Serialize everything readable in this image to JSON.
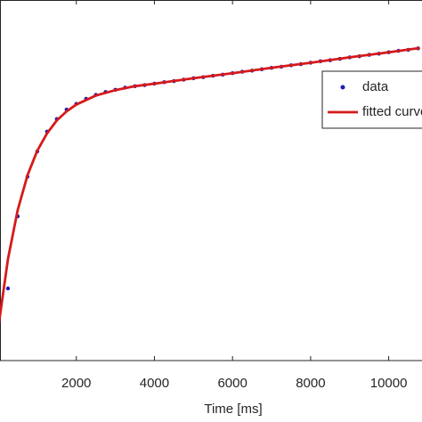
{
  "chart_data": {
    "type": "line",
    "x_label": "Time [ms]",
    "xlim": [
      0,
      10800
    ],
    "ylim": [
      0,
      1
    ],
    "xticks": [
      2000,
      4000,
      6000,
      8000,
      10000
    ],
    "series": [
      {
        "name": "data",
        "color": "#1c1cb4",
        "marker": "dot",
        "x": [
          0,
          250,
          500,
          750,
          1000,
          1250,
          1500,
          1750,
          2000,
          2250,
          2500,
          2750,
          3000,
          3250,
          3500,
          3750,
          4000,
          4250,
          4500,
          4750,
          5000,
          5250,
          5500,
          5750,
          6000,
          6250,
          6500,
          6750,
          7000,
          7250,
          7500,
          7750,
          8000,
          8250,
          8500,
          8750,
          9000,
          9250,
          9500,
          9750,
          10000,
          10250,
          10500,
          10750
        ],
        "values": [
          0.1,
          0.2,
          0.4,
          0.51,
          0.58,
          0.635,
          0.67,
          0.696,
          0.712,
          0.726,
          0.737,
          0.745,
          0.751,
          0.757,
          0.761,
          0.764,
          0.768,
          0.772,
          0.775,
          0.779,
          0.783,
          0.786,
          0.79,
          0.793,
          0.797,
          0.801,
          0.804,
          0.808,
          0.812,
          0.815,
          0.819,
          0.822,
          0.826,
          0.83,
          0.833,
          0.837,
          0.841,
          0.844,
          0.848,
          0.851,
          0.855,
          0.859,
          0.862,
          0.866
        ]
      },
      {
        "name": "fitted curve",
        "color": "#d71a1a",
        "marker": "line",
        "x": [
          0,
          250,
          500,
          750,
          1000,
          1250,
          1500,
          1750,
          2000,
          2500,
          3000,
          3500,
          4000,
          5000,
          6000,
          7000,
          8000,
          9000,
          10000,
          10800
        ],
        "values": [
          0.09,
          0.282,
          0.418,
          0.514,
          0.582,
          0.63,
          0.666,
          0.691,
          0.71,
          0.735,
          0.75,
          0.761,
          0.768,
          0.783,
          0.797,
          0.812,
          0.826,
          0.841,
          0.855,
          0.867
        ]
      }
    ]
  }
}
